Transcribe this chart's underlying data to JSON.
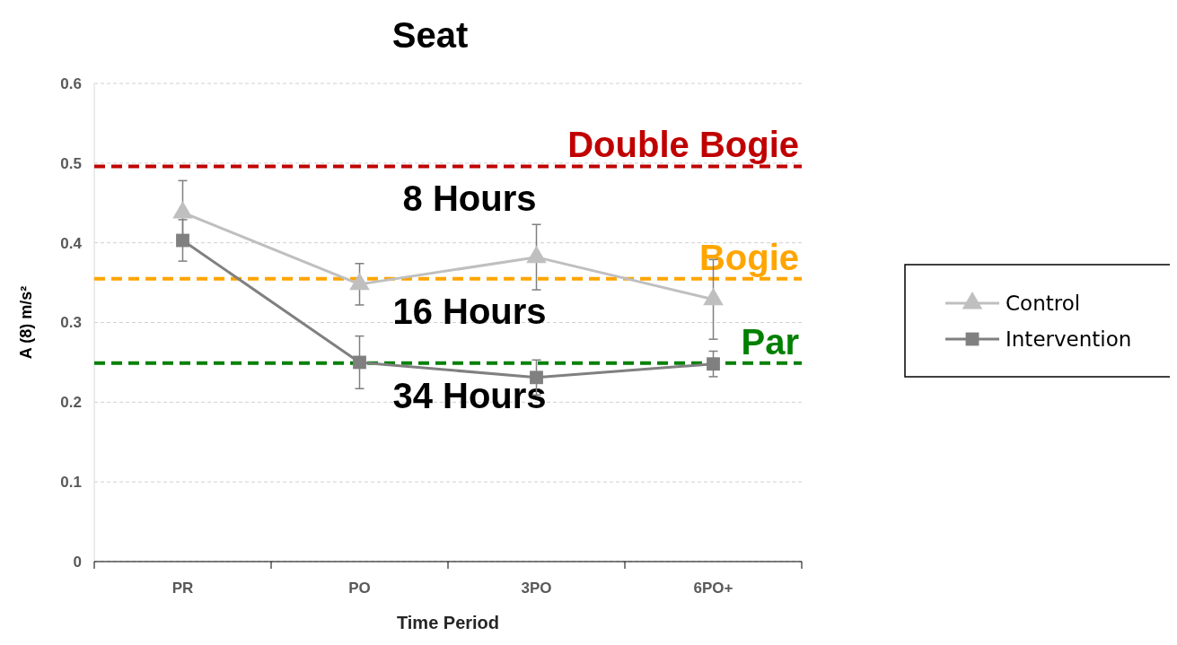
{
  "chart_data": {
    "type": "line",
    "title": "Seat",
    "xlabel": "Time Period",
    "ylabel": "A (8) m/s²",
    "categories": [
      "PR",
      "PO",
      "3PO",
      "6PO+"
    ],
    "series": [
      {
        "name": "Control",
        "color": "#bfbfbf",
        "marker": "triangle",
        "values": [
          0.438,
          0.348,
          0.382,
          0.329
        ],
        "errors": [
          0.04,
          0.026,
          0.041,
          0.05
        ]
      },
      {
        "name": "Intervention",
        "color": "#808080",
        "marker": "square",
        "values": [
          0.403,
          0.25,
          0.231,
          0.248
        ],
        "errors": [
          0.026,
          0.033,
          0.022,
          0.016
        ]
      }
    ],
    "ylim": [
      0,
      0.6
    ],
    "yticks": [
      {
        "value": 0,
        "label": "0"
      },
      0.1,
      0.2,
      0.3,
      0.4,
      0.5,
      0.6
    ],
    "grid": "y",
    "legend": "right",
    "ref_lines": [
      {
        "axis": "y",
        "value": 0.496,
        "label": "Double Bogie",
        "color": "#c00000",
        "line_style": "dashed"
      },
      {
        "axis": "y",
        "value": 0.355,
        "label": "Bogie",
        "color": "#ffa500",
        "line_style": "dashed"
      },
      {
        "axis": "y",
        "value": 0.249,
        "label": "Par",
        "color": "#008000",
        "line_style": "dashed"
      }
    ],
    "annotations": [
      "8 Hours",
      "16 Hours",
      "34 Hours"
    ]
  }
}
